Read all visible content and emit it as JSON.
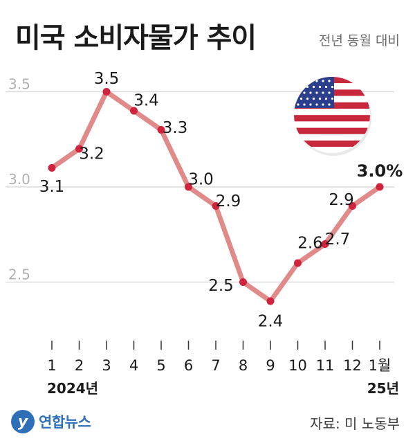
{
  "header": {
    "title": "미국 소비자물가 추이",
    "subtitle": "전년 동월 대비"
  },
  "footer": {
    "logo_text": "연합뉴스",
    "source": "자료: 미 노동부"
  },
  "flag_icon": "us-flag-icon",
  "colors": {
    "line": "#e08a8a",
    "marker": "#d0233d",
    "grid": "#dcdcdc",
    "axis_tick": "#b0b0b0",
    "logo": "#2f6fb8"
  },
  "chart_data": {
    "type": "line",
    "x": [
      "1",
      "2",
      "3",
      "4",
      "5",
      "6",
      "7",
      "8",
      "9",
      "10",
      "11",
      "12",
      "1월"
    ],
    "year_labels": [
      "2024년",
      "25년"
    ],
    "values": [
      3.1,
      3.2,
      3.5,
      3.4,
      3.3,
      3.0,
      2.9,
      2.5,
      2.4,
      2.6,
      2.7,
      2.9,
      3.0
    ],
    "point_labels": [
      "3.1",
      "3.2",
      "3.5",
      "3.4",
      "3.3",
      "3.0",
      "2.9",
      "2.5",
      "2.4",
      "2.6",
      "2.7",
      "2.9",
      "3.0%"
    ],
    "yticks": [
      "2.5",
      "3.0",
      "3.5"
    ],
    "ytick_values": [
      2.5,
      3.0,
      3.5
    ],
    "ylim": [
      2.5,
      3.5
    ],
    "grid": true,
    "legend": "none"
  }
}
